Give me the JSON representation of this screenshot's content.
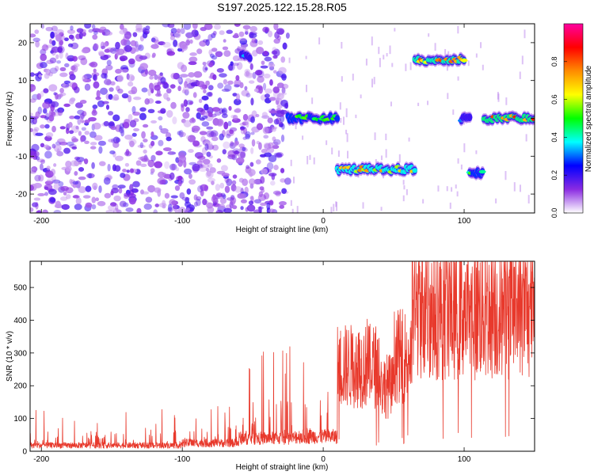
{
  "title": "S197.2025.122.15.28.R05",
  "chart_data": [
    {
      "type": "heatmap",
      "xlabel": "Height of straight line (km)",
      "ylabel": "Frequency (Hz)",
      "xlim": [
        -208,
        150
      ],
      "ylim": [
        -25,
        25
      ],
      "x_ticks": [
        -200,
        -100,
        0,
        100
      ],
      "y_ticks": [
        -20,
        -10,
        0,
        10,
        20
      ],
      "colorbar": {
        "label": "Normalized spectral amplitude",
        "range": [
          0,
          1
        ],
        "ticks": [
          0.0,
          0.2,
          0.4,
          0.6,
          0.8
        ],
        "colors": [
          "#ffffff",
          "#8a2be2",
          "#0000ff",
          "#00ffff",
          "#00ff00",
          "#ffff00",
          "#ff8c00",
          "#ff0000",
          "#ff00a0"
        ]
      },
      "noise_region": {
        "x_range": [
          -208,
          -25
        ],
        "freq_range": [
          -25,
          25
        ],
        "amplitude_range": [
          0.05,
          0.2
        ]
      },
      "bands": [
        {
          "x_range": [
            -58,
            -52
          ],
          "freq": 16.5,
          "amplitude": 0.35
        },
        {
          "x_range": [
            -25,
            10
          ],
          "freq": 0,
          "amplitude": 0.5
        },
        {
          "x_range": [
            10,
            65
          ],
          "freq": -13.5,
          "amplitude": 0.7
        },
        {
          "x_range": [
            65,
            100
          ],
          "freq": 15.5,
          "amplitude": 0.75
        },
        {
          "x_range": [
            98,
            104
          ],
          "freq": 0,
          "amplitude": 0.35
        },
        {
          "x_range": [
            104,
            113
          ],
          "freq": -14.5,
          "amplitude": 0.5
        },
        {
          "x_range": [
            114,
            150
          ],
          "freq": 0,
          "amplitude": 0.8
        }
      ],
      "grid": false
    },
    {
      "type": "line",
      "xlabel": "Height of straight line (km)",
      "ylabel": "SNR (10 * v/v)",
      "xlim": [
        -208,
        150
      ],
      "ylim": [
        0,
        580
      ],
      "x_ticks": [
        -200,
        -100,
        0,
        100
      ],
      "y_ticks": [
        0,
        100,
        200,
        300,
        400,
        500
      ],
      "line_color": "#e8392c",
      "grid": false,
      "segments": [
        {
          "x_range": [
            -208,
            -100
          ],
          "baseline": 18,
          "spike_max": 130
        },
        {
          "x_range": [
            -100,
            -60
          ],
          "baseline": 25,
          "spike_max": 160
        },
        {
          "x_range": [
            -60,
            -20
          ],
          "baseline": 40,
          "spike_max": 330
        },
        {
          "x_range": [
            -20,
            10
          ],
          "baseline": 45,
          "spike_max": 330
        },
        {
          "x_range": [
            10,
            40
          ],
          "baseline": 260,
          "spike_max": 350
        },
        {
          "x_range": [
            40,
            50
          ],
          "baseline": 200,
          "spike_max": 250
        },
        {
          "x_range": [
            50,
            63
          ],
          "baseline": 290,
          "spike_max": 400
        },
        {
          "x_range": [
            63,
            150
          ],
          "baseline": 430,
          "spike_max": 570
        }
      ]
    }
  ]
}
